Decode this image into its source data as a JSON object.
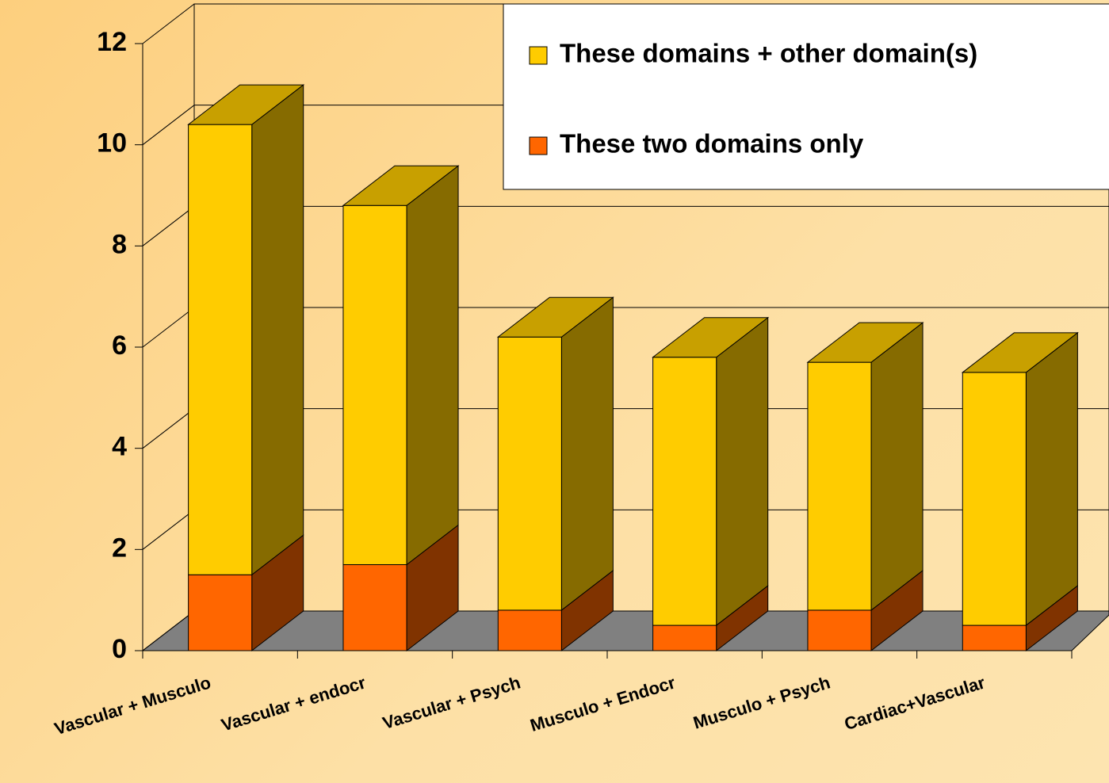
{
  "chart_data": {
    "type": "bar3d_stacked",
    "categories": [
      "Vascular + Musculo",
      "Vascular + endocr",
      "Vascular + Psych",
      "Musculo + Endocr",
      "Musculo + Psych",
      "Cardiac+Vascular"
    ],
    "series": [
      {
        "name": "These two domains only",
        "color": "#ff6600",
        "side_color": "#803300",
        "values": [
          1.5,
          1.7,
          0.8,
          0.5,
          0.8,
          0.5
        ]
      },
      {
        "name": "These domains + other domain(s)",
        "color": "#ffcc00",
        "side_color": "#866b00",
        "top_color": "#c8a000",
        "values": [
          8.9,
          7.1,
          5.4,
          5.3,
          4.9,
          5.0
        ]
      }
    ],
    "ylim": [
      0,
      12
    ],
    "yticks": [
      0,
      2,
      4,
      6,
      8,
      10,
      12
    ],
    "grid": true,
    "legend": "top-right"
  }
}
